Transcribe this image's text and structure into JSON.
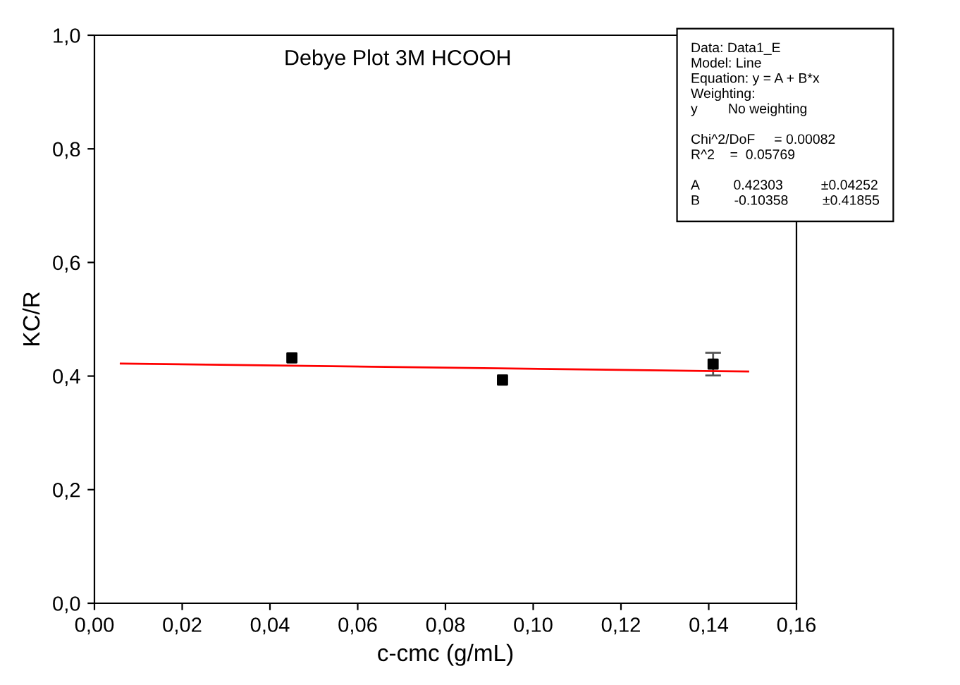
{
  "chart_data": {
    "type": "scatter",
    "title": "Debye Plot 3M HCOOH",
    "xlabel": "c-cmc (g/mL)",
    "ylabel": "KC/R",
    "xlim": [
      0,
      0.16
    ],
    "ylim": [
      0,
      1.0
    ],
    "xticks": [
      {
        "value": 0,
        "label": "0,00"
      },
      {
        "value": 0.02,
        "label": "0,02"
      },
      {
        "value": 0.04,
        "label": "0,04"
      },
      {
        "value": 0.06,
        "label": "0,06"
      },
      {
        "value": 0.08,
        "label": "0,08"
      },
      {
        "value": 0.1,
        "label": "0,10"
      },
      {
        "value": 0.12,
        "label": "0,12"
      },
      {
        "value": 0.14,
        "label": "0,14"
      },
      {
        "value": 0.16,
        "label": "0,16"
      }
    ],
    "yticks": [
      {
        "value": 0,
        "label": "0,0"
      },
      {
        "value": 0.2,
        "label": "0,2"
      },
      {
        "value": 0.4,
        "label": "0,4"
      },
      {
        "value": 0.6,
        "label": "0,6"
      },
      {
        "value": 0.8,
        "label": "0,8"
      },
      {
        "value": 1.0,
        "label": "1,0"
      }
    ],
    "grid": false,
    "legend": false,
    "series": [
      {
        "color": "#000000",
        "marker": "square",
        "x": [
          0.045,
          0.093,
          0.141
        ],
        "values": [
          0.432,
          0.393,
          0.421
        ],
        "errors": [
          null,
          null,
          0.02
        ]
      },
      {
        "type": "line",
        "color": "#ff0000",
        "marker": "none",
        "line_style": "solid",
        "x": [
          0.006,
          0.149
        ],
        "values": [
          0.422,
          0.408
        ]
      }
    ],
    "annotations": [
      "Data: Data1_E\nModel: Line\nEquation: y = A + B*x\nWeighting:\ny        No weighting\n\nChi^2/DoF     = 0.00082\nR^2    =  0.05769\n\nA         0.42303          ±0.04252\nB         -0.10358         ±0.41855"
    ]
  }
}
